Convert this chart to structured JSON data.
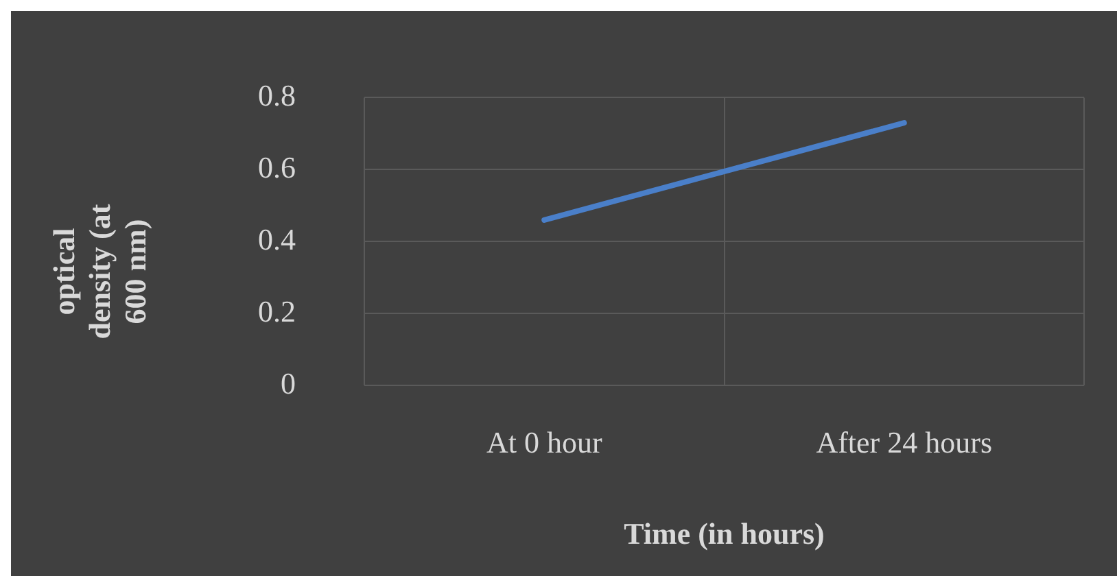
{
  "chart_data": {
    "type": "line",
    "xlabel": "Time (in hours)",
    "ylabel": "optical density (at 600 nm)",
    "categories": [
      "At 0 hour",
      "After 24 hours"
    ],
    "series": [
      {
        "color": "#4a7fc9",
        "values": [
          0.46,
          0.73
        ]
      }
    ],
    "ylim": [
      0,
      0.8
    ],
    "yticks": [
      0,
      0.2,
      0.4,
      0.6,
      0.8
    ],
    "grid": true,
    "marker": "none",
    "line_style": "solid"
  }
}
